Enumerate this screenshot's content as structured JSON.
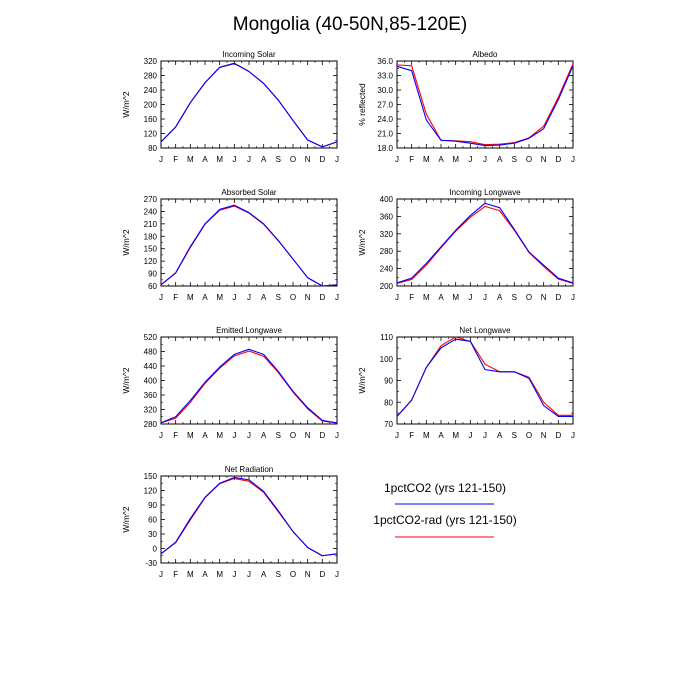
{
  "figure": {
    "title": "Mongolia (40-50N,85-120E)"
  },
  "legend": [
    {
      "name": "1pctCO2 (yrs 121-150)",
      "color": "#0000ff"
    },
    {
      "name": "1pctCO2-rad (yrs 121-150)",
      "color": "#ff0000"
    }
  ],
  "chart_data": [
    {
      "type": "line",
      "title": "Incoming Solar",
      "ylabel": "W/m^2",
      "x": [
        "J",
        "F",
        "M",
        "A",
        "M",
        "J",
        "J",
        "A",
        "S",
        "O",
        "N",
        "D",
        "J"
      ],
      "ylim": [
        80,
        320
      ],
      "yticks": [
        80,
        120,
        160,
        200,
        240,
        280,
        320
      ],
      "ytick_labels": [
        "80",
        "120",
        "160",
        "200",
        "240",
        "280",
        "320"
      ],
      "series": [
        {
          "name": "1pctCO2 (yrs 121-150)",
          "color": "#0000ff",
          "values": [
            97,
            138,
            205,
            260,
            302,
            313,
            291,
            258,
            212,
            156,
            102,
            83,
            97
          ]
        },
        {
          "name": "1pctCO2-rad (yrs 121-150)",
          "color": "#ff0000",
          "values": [
            97,
            138,
            205,
            260,
            303,
            314,
            291,
            258,
            212,
            156,
            102,
            83,
            97
          ]
        }
      ]
    },
    {
      "type": "line",
      "title": "Albedo",
      "ylabel": "% reflected",
      "x": [
        "J",
        "F",
        "M",
        "A",
        "M",
        "J",
        "J",
        "A",
        "S",
        "O",
        "N",
        "D",
        "J"
      ],
      "ylim": [
        18,
        36
      ],
      "yticks": [
        18,
        21,
        24,
        27,
        30,
        33,
        36
      ],
      "ytick_labels": [
        "18.0",
        "21.0",
        "24.0",
        "27.0",
        "30.0",
        "33.0",
        "36.0"
      ],
      "series": [
        {
          "name": "1pctCO2 (yrs 121-150)",
          "color": "#0000ff",
          "values": [
            34.9,
            34.0,
            23.8,
            19.6,
            19.4,
            19.0,
            18.5,
            18.6,
            19.0,
            20.0,
            22.0,
            28.0,
            35.0
          ]
        },
        {
          "name": "1pctCO2-rad (yrs 121-150)",
          "color": "#ff0000",
          "values": [
            35.2,
            35.0,
            25.0,
            19.6,
            19.5,
            19.3,
            18.7,
            18.8,
            19.1,
            20.1,
            22.5,
            28.5,
            35.4
          ]
        }
      ]
    },
    {
      "type": "line",
      "title": "Absorbed Solar",
      "ylabel": "W/m^2",
      "x": [
        "J",
        "F",
        "M",
        "A",
        "M",
        "J",
        "J",
        "A",
        "S",
        "O",
        "N",
        "D",
        "J"
      ],
      "ylim": [
        60,
        270
      ],
      "yticks": [
        60,
        90,
        120,
        150,
        180,
        210,
        240,
        270
      ],
      "ytick_labels": [
        "60",
        "90",
        "120",
        "150",
        "180",
        "210",
        "240",
        "270"
      ],
      "series": [
        {
          "name": "1pctCO2 (yrs 121-150)",
          "color": "#0000ff",
          "values": [
            63,
            92,
            155,
            210,
            245,
            255,
            237,
            210,
            170,
            125,
            80,
            60,
            63
          ]
        },
        {
          "name": "1pctCO2-rad (yrs 121-150)",
          "color": "#ff0000",
          "values": [
            63,
            91,
            153,
            209,
            243,
            253,
            236,
            209,
            169,
            125,
            80,
            60,
            63
          ]
        }
      ]
    },
    {
      "type": "line",
      "title": "Incoming Longwave",
      "ylabel": "W/m^2",
      "x": [
        "J",
        "F",
        "M",
        "A",
        "M",
        "J",
        "J",
        "A",
        "S",
        "O",
        "N",
        "D",
        "J"
      ],
      "ylim": [
        200,
        400
      ],
      "yticks": [
        200,
        240,
        280,
        320,
        360,
        400
      ],
      "ytick_labels": [
        "200",
        "240",
        "280",
        "320",
        "360",
        "400"
      ],
      "series": [
        {
          "name": "1pctCO2 (yrs 121-150)",
          "color": "#0000ff",
          "values": [
            207,
            218,
            252,
            290,
            328,
            362,
            390,
            380,
            330,
            278,
            248,
            218,
            207
          ]
        },
        {
          "name": "1pctCO2-rad (yrs 121-150)",
          "color": "#ff0000",
          "values": [
            206,
            215,
            248,
            288,
            326,
            358,
            383,
            373,
            328,
            277,
            245,
            216,
            206
          ]
        }
      ]
    },
    {
      "type": "line",
      "title": "Emitted Longwave",
      "ylabel": "W/m^2",
      "x": [
        "J",
        "F",
        "M",
        "A",
        "M",
        "J",
        "J",
        "A",
        "S",
        "O",
        "N",
        "D",
        "J"
      ],
      "ylim": [
        280,
        520
      ],
      "yticks": [
        280,
        320,
        360,
        400,
        440,
        480,
        520
      ],
      "ytick_labels": [
        "280",
        "320",
        "360",
        "400",
        "440",
        "480",
        "520"
      ],
      "series": [
        {
          "name": "1pctCO2 (yrs 121-150)",
          "color": "#0000ff",
          "values": [
            283,
            300,
            345,
            395,
            437,
            472,
            486,
            472,
            425,
            370,
            325,
            290,
            283
          ]
        },
        {
          "name": "1pctCO2-rad (yrs 121-150)",
          "color": "#ff0000",
          "values": [
            283,
            296,
            340,
            392,
            434,
            468,
            481,
            467,
            422,
            368,
            322,
            288,
            283
          ]
        }
      ]
    },
    {
      "type": "line",
      "title": "Net Longwave",
      "ylabel": "W/m^2",
      "x": [
        "J",
        "F",
        "M",
        "A",
        "M",
        "J",
        "J",
        "A",
        "S",
        "O",
        "N",
        "D",
        "J"
      ],
      "ylim": [
        70,
        110
      ],
      "yticks": [
        70,
        80,
        90,
        100,
        110
      ],
      "ytick_labels": [
        "70",
        "80",
        "90",
        "100",
        "110"
      ],
      "series": [
        {
          "name": "1pctCO2 (yrs 121-150)",
          "color": "#0000ff",
          "values": [
            73.5,
            81,
            96,
            105,
            109,
            108,
            95,
            94,
            94,
            91,
            78.5,
            73.5,
            73.5
          ]
        },
        {
          "name": "1pctCO2-rad (yrs 121-150)",
          "color": "#ff0000",
          "values": [
            73.5,
            81,
            96,
            106,
            110,
            108,
            97.5,
            94,
            94,
            91.5,
            80,
            74,
            74
          ]
        }
      ]
    },
    {
      "type": "line",
      "title": "Net Radiation",
      "ylabel": "W/m^2",
      "x": [
        "J",
        "F",
        "M",
        "A",
        "M",
        "J",
        "J",
        "A",
        "S",
        "O",
        "N",
        "D",
        "J"
      ],
      "ylim": [
        -30,
        150
      ],
      "yticks": [
        -30,
        0,
        30,
        60,
        90,
        120,
        150
      ],
      "ytick_labels": [
        "-30",
        "0",
        "30",
        "60",
        "90",
        "120",
        "150"
      ],
      "series": [
        {
          "name": "1pctCO2 (yrs 121-150)",
          "color": "#0000ff",
          "values": [
            -11,
            13,
            62,
            106,
            135,
            147,
            142,
            118,
            78,
            35,
            2,
            -15,
            -11
          ]
        },
        {
          "name": "1pctCO2-rad (yrs 121-150)",
          "color": "#ff0000",
          "values": [
            -11,
            12,
            59,
            105,
            134,
            145,
            139,
            116,
            76,
            35,
            2,
            -15,
            -11
          ]
        }
      ]
    }
  ]
}
